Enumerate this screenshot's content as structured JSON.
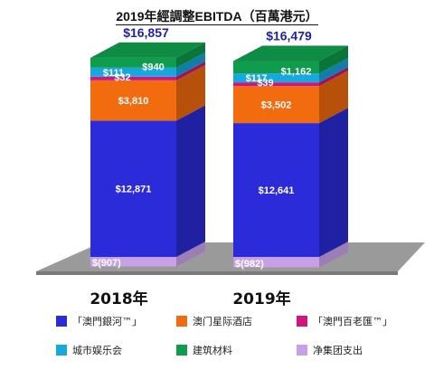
{
  "chart_data": {
    "type": "bar",
    "stacked": true,
    "title": "2019年經調整EBITDA（百萬港元）",
    "categories": [
      "2018年",
      "2019年"
    ],
    "totals": [
      "$16,857",
      "$16,479"
    ],
    "series": [
      {
        "name": "「澳門銀河™」",
        "values": [
          12871,
          12641
        ],
        "labels": [
          "$12,871",
          "$12,641"
        ],
        "color": "#2b2bd9"
      },
      {
        "name": "澳门星际酒店",
        "values": [
          3810,
          3502
        ],
        "labels": [
          "$3,810",
          "$3,502"
        ],
        "color": "#f26b0f"
      },
      {
        "name": "「澳門百老匯™」",
        "values": [
          32,
          39
        ],
        "labels": [
          "$32",
          "$39"
        ],
        "color": "#d0157f"
      },
      {
        "name": "城市娱乐会",
        "values": [
          111,
          117
        ],
        "labels": [
          "$111",
          "$117"
        ],
        "color": "#17a8e0"
      },
      {
        "name": "建筑材料",
        "values": [
          940,
          1162
        ],
        "labels": [
          "$940",
          "$1,162"
        ],
        "color": "#0f9c4c"
      },
      {
        "name": "净集团支出",
        "values": [
          -907,
          -982
        ],
        "labels": [
          "$(907)",
          "$(982)"
        ],
        "color": "#c8a0e8"
      }
    ],
    "legend_position": "bottom",
    "grid": false
  }
}
